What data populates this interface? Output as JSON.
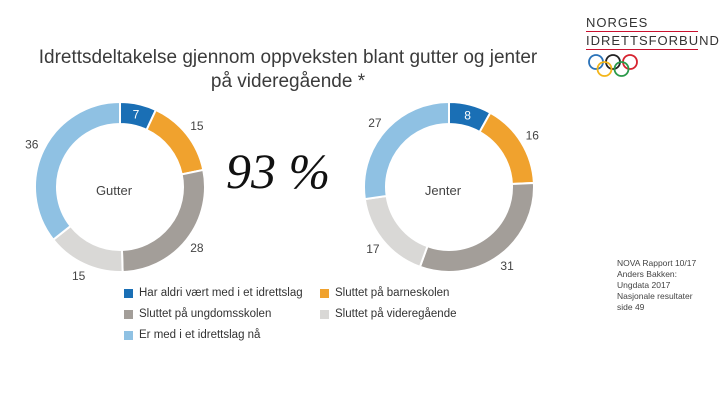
{
  "title_lines": [
    "Idrettsdeltakelse gjennom oppveksten blant gutter og jenter",
    "på videregående *"
  ],
  "logo": {
    "line1": "NORGES",
    "line2": "IDRETTSFORBUND"
  },
  "highlight": "93 %",
  "source": [
    "NOVA Rapport 10/17",
    "Anders Bakken:",
    "Ungdata 2017",
    "Nasjonale resultater",
    "side 49"
  ],
  "colors": {
    "never": "#1a6fb5",
    "primary": "#f0a22e",
    "lower": "#a39e99",
    "upper": "#d9d8d6",
    "active": "#8fc1e3"
  },
  "chart_data": [
    {
      "type": "pie",
      "center_label": "Gutter",
      "categories": [
        "Har aldri vært med i et idrettslag",
        "Sluttet på barneskolen",
        "Sluttet på ungdomsskolen",
        "Sluttet på videregående",
        "Er med i et idrettslag nå"
      ],
      "values": [
        7,
        15,
        28,
        15,
        36
      ],
      "labels": [
        "7",
        "15",
        "28",
        "15",
        "36"
      ]
    },
    {
      "type": "pie",
      "center_label": "Jenter",
      "categories": [
        "Har aldri vært med i et idrettslag",
        "Sluttet på barneskolen",
        "Sluttet på ungdomsskolen",
        "Sluttet på videregående",
        "Er med i et idrettslag nå"
      ],
      "values": [
        8,
        16,
        31,
        17,
        27
      ],
      "labels": [
        "8",
        "16",
        "31",
        "17",
        "27"
      ]
    }
  ],
  "legend": [
    {
      "label": "Har aldri vært med i et idrettslag",
      "color_key": "never"
    },
    {
      "label": "Sluttet på barneskolen",
      "color_key": "primary"
    },
    {
      "label": "Sluttet på ungdomsskolen",
      "color_key": "lower"
    },
    {
      "label": "Sluttet på videregående",
      "color_key": "upper"
    },
    {
      "label": "Er med i et idrettslag nå",
      "color_key": "active"
    }
  ]
}
